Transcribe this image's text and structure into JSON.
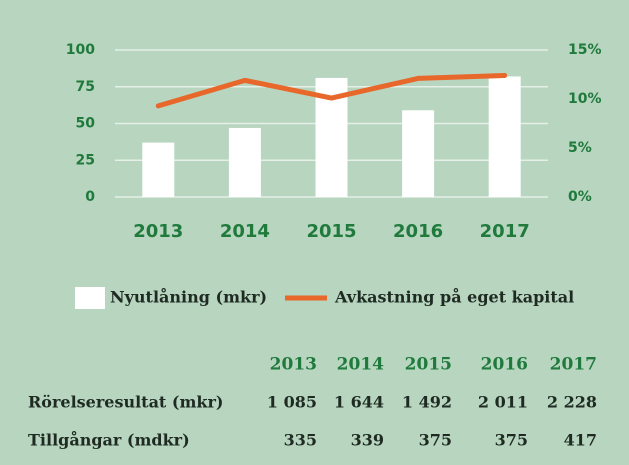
{
  "chart_data": {
    "type": "bar",
    "categories": [
      "2013",
      "2014",
      "2015",
      "2016",
      "2017"
    ],
    "series": [
      {
        "name": "Nyutlåning (mkr)",
        "type": "bar",
        "color": "#ffffff",
        "values": [
          37,
          47,
          81,
          59,
          82
        ]
      },
      {
        "name": "Avkastning på eget kapital",
        "type": "line",
        "axis": "y2",
        "color": "#e8672a",
        "values": [
          9.3,
          11.9,
          10.1,
          12.1,
          12.4
        ]
      }
    ],
    "ylim": [
      0,
      100
    ],
    "yticks": [
      0,
      25,
      50,
      75,
      100
    ],
    "y2lim": [
      0,
      15
    ],
    "y2ticks": [
      {
        "value": 0,
        "label": "0%"
      },
      {
        "value": 5,
        "label": "5%"
      },
      {
        "value": 10,
        "label": "10%"
      },
      {
        "value": 15,
        "label": "15%"
      }
    ],
    "grid": true
  },
  "table": {
    "header": [
      "2013",
      "2014",
      "2015",
      "2016",
      "2017"
    ],
    "rows": [
      [
        "Rörelseresultat (mkr)",
        "1 085",
        "1 644",
        "1 492",
        "2 011",
        "2 228"
      ],
      [
        "Tillgångar (mdkr)",
        335,
        339,
        375,
        375,
        417
      ]
    ]
  }
}
